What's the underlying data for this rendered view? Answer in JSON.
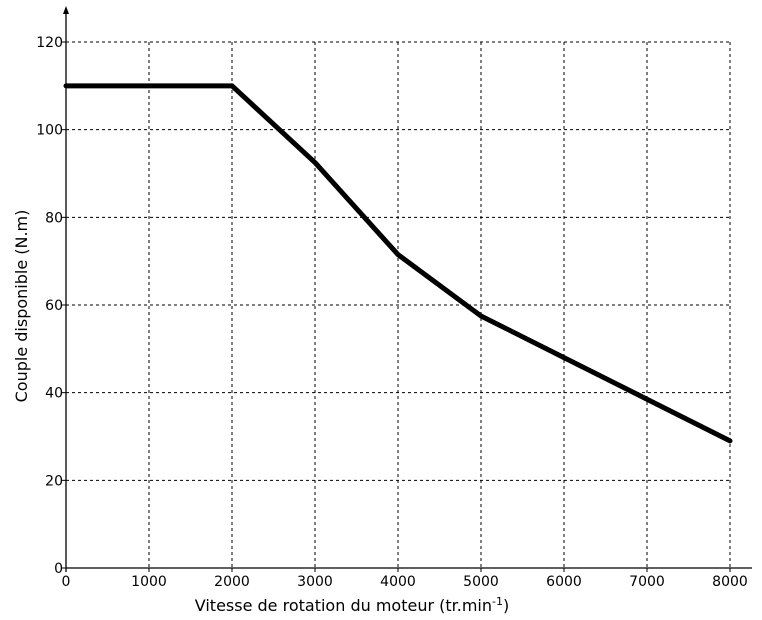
{
  "chart_data": {
    "type": "line",
    "title": "",
    "xlabel": "Vitesse de rotation du moteur (tr.min",
    "xlabel_sup": "-1",
    "xlabel_end": ")",
    "ylabel": "Couple disponible (N.m)",
    "xlim": [
      0,
      8000
    ],
    "ylim": [
      0,
      120
    ],
    "x_ticks": [
      0,
      1000,
      2000,
      3000,
      4000,
      5000,
      6000,
      7000,
      8000
    ],
    "y_ticks": [
      0,
      20,
      40,
      60,
      80,
      100,
      120
    ],
    "grid": true,
    "series": [
      {
        "x": [
          0,
          2000,
          3000,
          4000,
          5000,
          6000,
          7000,
          8000
        ],
        "y": [
          110,
          110,
          92.5,
          71.5,
          57.5,
          48,
          38.5,
          29
        ]
      }
    ]
  }
}
